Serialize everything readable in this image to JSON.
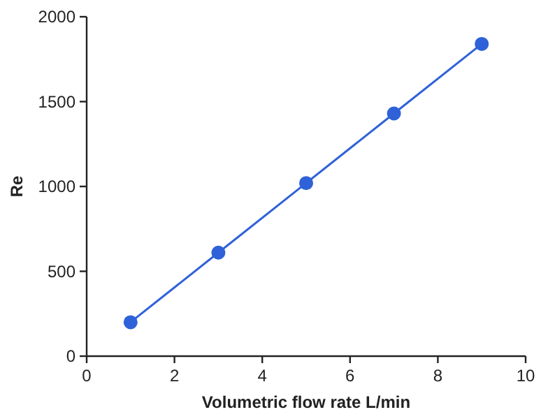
{
  "chart_data": {
    "type": "line",
    "xlabel": "Volumetric flow rate L/min",
    "ylabel": "Re",
    "x": [
      1,
      3,
      5,
      7,
      9
    ],
    "series": [
      {
        "color": "#2f62d8",
        "values": [
          200,
          610,
          1020,
          1430,
          1840
        ]
      }
    ],
    "xlim": [
      0,
      10
    ],
    "xticks": [
      0,
      2,
      4,
      6,
      8,
      10
    ],
    "ylim": [
      0,
      2000
    ],
    "yticks": [
      0,
      500,
      1000,
      1500,
      2000
    ],
    "grid": false,
    "marker": "circle",
    "line_style": "solid"
  }
}
